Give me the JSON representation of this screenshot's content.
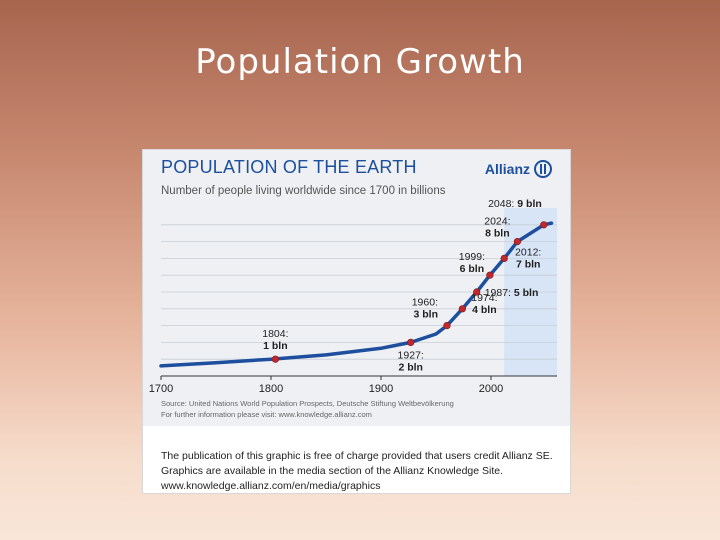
{
  "slide": {
    "title": "Population Growth"
  },
  "chart_data": {
    "type": "line",
    "title": "POPULATION OF THE EARTH",
    "subtitle": "Number of people living worldwide since 1700 in billions",
    "brand": "Allianz",
    "xlabel": "",
    "ylabel": "",
    "xlim": [
      1700,
      2060
    ],
    "ylim": [
      0,
      10
    ],
    "grid": true,
    "x_ticks": [
      "1700",
      "1800",
      "1900",
      "2000"
    ],
    "series": [
      {
        "x": [
          1700,
          1750,
          1800,
          1850,
          1900,
          1927,
          1950,
          1960,
          1974,
          1987,
          1999,
          2012,
          2024,
          2048,
          2055
        ],
        "values": [
          0.6,
          0.79,
          1.0,
          1.26,
          1.65,
          2.0,
          2.5,
          3.0,
          4.0,
          5.0,
          6.0,
          7.0,
          8.0,
          9.0,
          9.1
        ]
      }
    ],
    "annotations": [
      {
        "year": 1804,
        "value": 1,
        "label_year": "1804:",
        "label_value": "1 bln"
      },
      {
        "year": 1927,
        "value": 2,
        "label_year": "1927:",
        "label_value": "2 bln"
      },
      {
        "year": 1960,
        "value": 3,
        "label_year": "1960:",
        "label_value": "3 bln"
      },
      {
        "year": 1974,
        "value": 4,
        "label_year": "1974:",
        "label_value": "4 bln"
      },
      {
        "year": 1987,
        "value": 5,
        "label_year": "1987:",
        "label_value": "5 bln"
      },
      {
        "year": 1999,
        "value": 6,
        "label_year": "1999:",
        "label_value": "6 bln"
      },
      {
        "year": 2012,
        "value": 7,
        "label_year": "2012:",
        "label_value": "7 bln"
      },
      {
        "year": 2024,
        "value": 8,
        "label_year": "2024:",
        "label_value": "8 bln"
      },
      {
        "year": 2048,
        "value": 9,
        "label_year": "2048:",
        "label_value": "9 bln"
      }
    ],
    "colors": {
      "line": "#1d4f9e",
      "marker": "#c0282d",
      "forecast_area": "#d7e5f7",
      "grid": "#ffffff",
      "title": "#1d4f9e"
    },
    "source_lines": [
      "Source: United Nations World Population Prospects, Deutsche Stiftung Weltbevölkerung",
      "For further information please visit: www.knowledge.allianz.com"
    ],
    "notice_lines": [
      "The publication of this graphic is free of charge provided that users credit Allianz SE.",
      "Graphics are available in the media section of the Allianz Knowledge Site.",
      "www.knowledge.allianz.com/en/media/graphics"
    ]
  }
}
